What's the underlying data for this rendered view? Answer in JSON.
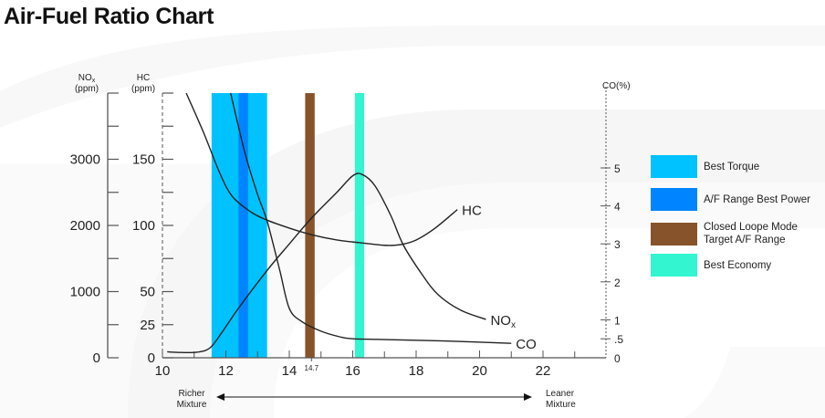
{
  "title": "Air-Fuel Ratio Chart",
  "chart_data": {
    "type": "line",
    "title": "Air-Fuel Ratio Chart",
    "xlabel_left": "Richer Mixture",
    "xlabel_right": "Leaner Mixture",
    "x_ticks": [
      10,
      12,
      14,
      16,
      18,
      20,
      22
    ],
    "x_ticks_label": [
      "10",
      "12",
      "14",
      "16",
      "18",
      "20",
      "22"
    ],
    "x_special_tick": {
      "value": 14.7,
      "label": "14.7"
    },
    "xlim": [
      10,
      24
    ],
    "axes": {
      "nox": {
        "label_main": "NO",
        "label_sub": "x",
        "label_unit": "(ppm)",
        "range": [
          0,
          4000
        ],
        "ticks": [
          0,
          1000,
          2000,
          3000
        ],
        "tick_labels": [
          "0",
          "1000",
          "2000",
          "3000"
        ]
      },
      "hc": {
        "label_main": "HC",
        "label_unit": "(ppm)",
        "range": [
          0,
          200
        ],
        "ticks": [
          0,
          25,
          50,
          100,
          150
        ],
        "tick_labels": [
          "0",
          "25",
          "50",
          "100",
          "150"
        ]
      },
      "co": {
        "label": "CO(%)",
        "range": [
          0,
          7
        ],
        "ticks": [
          0,
          0.5,
          1,
          2,
          3,
          4,
          5
        ],
        "tick_labels": [
          "0",
          ".5",
          "1",
          "2",
          "3",
          "4",
          "5"
        ]
      }
    },
    "bands": [
      {
        "name": "Best Torque",
        "from": 11.55,
        "to": 13.3,
        "color": "#00c2ff"
      },
      {
        "name": "A/F Range Best Power",
        "from": 12.4,
        "to": 12.7,
        "color": "#0084ff"
      },
      {
        "name": "Closed Loope Mode Target A/F Range",
        "from": 14.5,
        "to": 14.8,
        "color": "#87532b"
      },
      {
        "name": "Best Economy",
        "from": 16.07,
        "to": 16.36,
        "color": "#33f5d0"
      }
    ],
    "series": [
      {
        "name": "HC",
        "label": "HC",
        "axis": "hc",
        "points": [
          [
            10.75,
            201
          ],
          [
            11.3,
            170
          ],
          [
            11.8,
            140
          ],
          [
            12.2,
            122
          ],
          [
            12.8,
            110
          ],
          [
            13.3,
            104
          ],
          [
            14,
            98
          ],
          [
            14.7,
            93
          ],
          [
            15.5,
            89
          ],
          [
            16.2,
            87
          ],
          [
            17,
            85
          ],
          [
            17.5,
            85.5
          ],
          [
            18,
            89
          ],
          [
            18.6,
            98
          ],
          [
            19.3,
            112
          ]
        ]
      },
      {
        "name": "NOx",
        "label_main": "NO",
        "label_sub": "x",
        "axis": "nox",
        "points": [
          [
            10.15,
            90
          ],
          [
            10.6,
            80
          ],
          [
            11.1,
            85
          ],
          [
            11.5,
            150
          ],
          [
            11.9,
            400
          ],
          [
            12.4,
            750
          ],
          [
            13.3,
            1320
          ],
          [
            14,
            1720
          ],
          [
            14.7,
            2110
          ],
          [
            15.5,
            2500
          ],
          [
            16,
            2750
          ],
          [
            16.3,
            2770
          ],
          [
            16.7,
            2600
          ],
          [
            17.2,
            2150
          ],
          [
            17.6,
            1700
          ],
          [
            18.2,
            1250
          ],
          [
            18.7,
            950
          ],
          [
            19.4,
            720
          ],
          [
            20.2,
            580
          ]
        ]
      },
      {
        "name": "CO",
        "label": "CO",
        "axis": "co",
        "points": [
          [
            12.15,
            7.0
          ],
          [
            12.6,
            5.4
          ],
          [
            13,
            4.3
          ],
          [
            13.3,
            3.6
          ],
          [
            13.7,
            2.3
          ],
          [
            14,
            1.3
          ],
          [
            14.4,
            0.95
          ],
          [
            15,
            0.7
          ],
          [
            15.6,
            0.55
          ],
          [
            16,
            0.5
          ],
          [
            17,
            0.48
          ],
          [
            19,
            0.44
          ],
          [
            21,
            0.38
          ]
        ]
      }
    ],
    "legend": "right"
  },
  "legend": [
    {
      "label": "Best Torque",
      "color": "#00c2ff"
    },
    {
      "label": "A/F Range Best Power",
      "color": "#0084ff"
    },
    {
      "label": "Closed Loope Mode Target A/F Range",
      "color": "#87532b"
    },
    {
      "label": "Best Economy",
      "color": "#33f5d0"
    }
  ]
}
